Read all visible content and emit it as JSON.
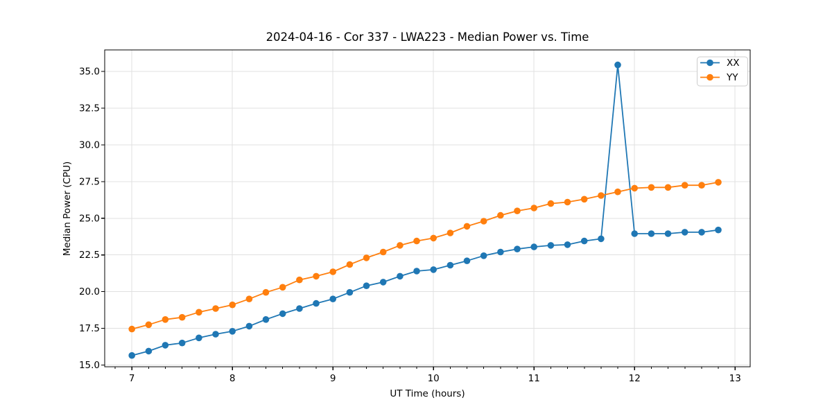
{
  "chart_data": {
    "type": "line",
    "title": "2024-04-16 - Cor 337 - LWA223 - Median Power vs. Time",
    "xlabel": "UT Time (hours)",
    "ylabel": "Median Power (CPU)",
    "xlim": [
      6.73,
      13.15
    ],
    "ylim": [
      14.88,
      36.47
    ],
    "grid": true,
    "legend_position": "upper right",
    "xtick_values": [
      7,
      8,
      9,
      10,
      11,
      12,
      13
    ],
    "xtick_labels": [
      "7",
      "8",
      "9",
      "10",
      "11",
      "12",
      "13"
    ],
    "x_minor_step_hours": 0.16667,
    "ytick_values": [
      15.0,
      17.5,
      20.0,
      22.5,
      25.0,
      27.5,
      30.0,
      32.5,
      35.0
    ],
    "ytick_labels": [
      "15.0",
      "17.5",
      "20.0",
      "22.5",
      "25.0",
      "27.5",
      "30.0",
      "32.5",
      "35.0"
    ],
    "x": [
      7.0,
      7.167,
      7.333,
      7.5,
      7.667,
      7.833,
      8.0,
      8.167,
      8.333,
      8.5,
      8.667,
      8.833,
      9.0,
      9.167,
      9.333,
      9.5,
      9.667,
      9.833,
      10.0,
      10.167,
      10.333,
      10.5,
      10.667,
      10.833,
      11.0,
      11.167,
      11.333,
      11.5,
      11.667,
      11.833,
      12.0,
      12.167,
      12.333,
      12.5,
      12.667,
      12.833
    ],
    "series": [
      {
        "name": "XX",
        "color": "#1f77b4",
        "values": [
          15.65,
          15.95,
          16.35,
          16.5,
          16.85,
          17.1,
          17.3,
          17.65,
          18.1,
          18.5,
          18.85,
          19.2,
          19.5,
          19.95,
          20.4,
          20.65,
          21.05,
          21.4,
          21.5,
          21.8,
          22.1,
          22.45,
          22.7,
          22.9,
          23.05,
          23.15,
          23.2,
          23.45,
          23.6,
          35.45,
          23.95,
          23.95,
          23.95,
          24.05,
          24.05,
          24.2
        ]
      },
      {
        "name": "YY",
        "color": "#ff7f0e",
        "values": [
          17.45,
          17.75,
          18.1,
          18.25,
          18.6,
          18.85,
          19.1,
          19.5,
          19.95,
          20.3,
          20.8,
          21.05,
          21.35,
          21.85,
          22.3,
          22.7,
          23.15,
          23.45,
          23.65,
          24.0,
          24.45,
          24.8,
          25.2,
          25.5,
          25.7,
          26.0,
          26.1,
          26.3,
          26.55,
          26.8,
          27.05,
          27.1,
          27.1,
          27.25,
          27.25,
          27.45
        ]
      }
    ],
    "annotations": {
      "spike_series": "XX",
      "spike_x": 11.833,
      "spike_value": 35.45
    }
  },
  "style_colors": {
    "grid": "#e0e0e0",
    "spine": "#000000",
    "background": "#ffffff",
    "legend_border": "#cccccc",
    "text": "#000000"
  }
}
